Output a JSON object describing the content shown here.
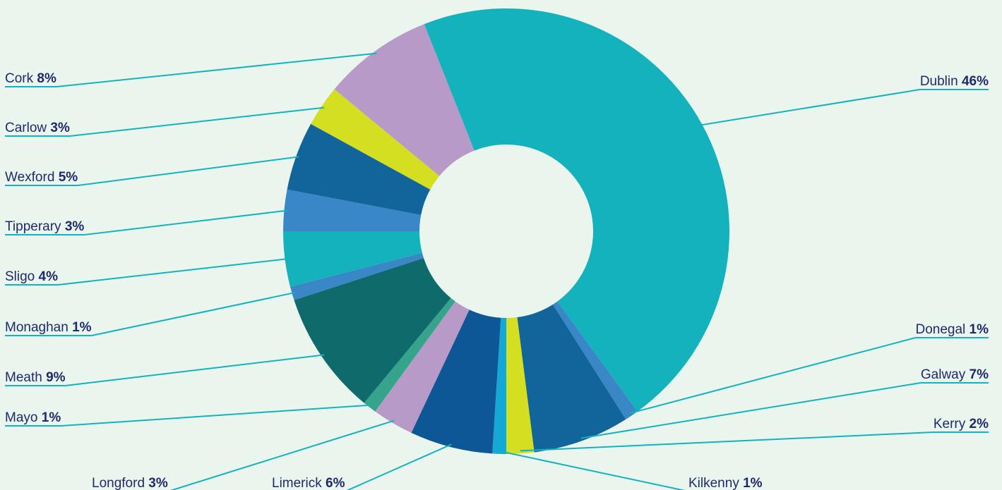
{
  "chart_data": {
    "type": "donut",
    "categories": [
      "Dublin",
      "Donegal",
      "Galway",
      "Kerry",
      "Kilkenny",
      "Limerick",
      "Longford",
      "Mayo",
      "Meath",
      "Monaghan",
      "Sligo",
      "Tipperary",
      "Wexford",
      "Carlow",
      "Cork"
    ],
    "values": [
      46,
      1,
      7,
      2,
      1,
      6,
      3,
      1,
      9,
      1,
      4,
      3,
      5,
      3,
      8
    ],
    "value_labels": [
      "46%",
      "1%",
      "7%",
      "2%",
      "1%",
      "6%",
      "3%",
      "1%",
      "9%",
      "1%",
      "4%",
      "3%",
      "5%",
      "3%",
      "8%"
    ],
    "colors": [
      "#13b2bd",
      "#3a87c8",
      "#12659b",
      "#d4df22",
      "#13a8d6",
      "#0e5797",
      "#b79ac8",
      "#35a48a",
      "#0e6a6b",
      "#3a87c8",
      "#13b2bd",
      "#3a87c8",
      "#12659b",
      "#d4df22",
      "#b79ac8"
    ]
  }
}
